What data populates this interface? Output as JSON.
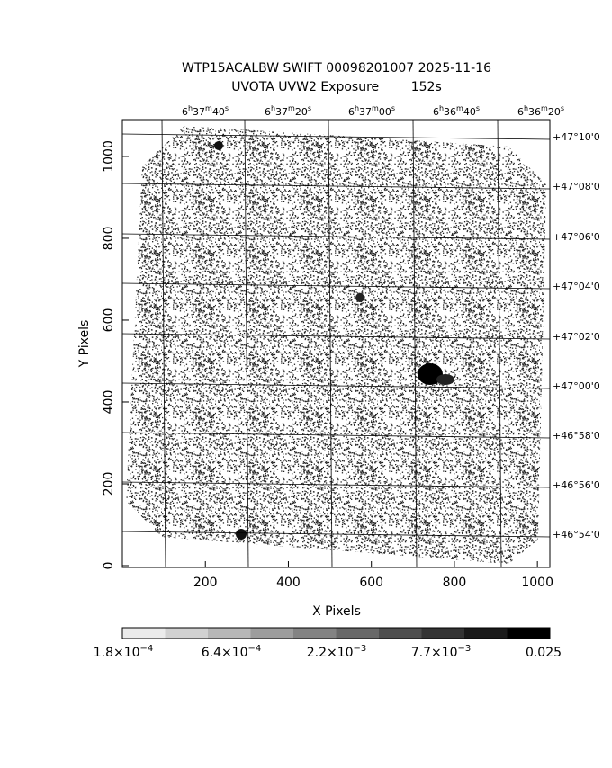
{
  "chart_data": {
    "type": "image",
    "title": "WTP15ACALBW SWIFT 00098201007 2025-11-16",
    "subtitle": "UVOTA UVW2 Exposure        152s",
    "x_label": "X Pixels",
    "y_label": "Y Pixels",
    "xlim": [
      0,
      1030
    ],
    "ylim": [
      0,
      1090
    ],
    "xticks": [
      200,
      400,
      600,
      800,
      1000
    ],
    "yticks": [
      0,
      200,
      400,
      600,
      800,
      1000
    ],
    "ra_labels": [
      [
        "6",
        "h",
        "37",
        "m",
        "40",
        "s"
      ],
      [
        "6",
        "h",
        "37",
        "m",
        "20",
        "s"
      ],
      [
        "6",
        "h",
        "37",
        "m",
        "00",
        "s"
      ],
      [
        "6",
        "h",
        "36",
        "m",
        "40",
        "s"
      ],
      [
        "6",
        "h",
        "36",
        "m",
        "20",
        "s"
      ]
    ],
    "dec_labels": [
      "+47°10'0",
      "+47°08'0",
      "+47°06'0",
      "+47°04'0",
      "+47°02'0",
      "+47°00'0",
      "+46°58'0",
      "+46°56'0",
      "+46°54'0"
    ],
    "colorbar_labels": [
      [
        "1.8×10",
        "−4"
      ],
      [
        "6.4×10",
        "−4"
      ],
      [
        "2.2×10",
        "−3"
      ],
      [
        "7.7×10",
        "−3"
      ],
      [
        "0.025"
      ]
    ]
  }
}
